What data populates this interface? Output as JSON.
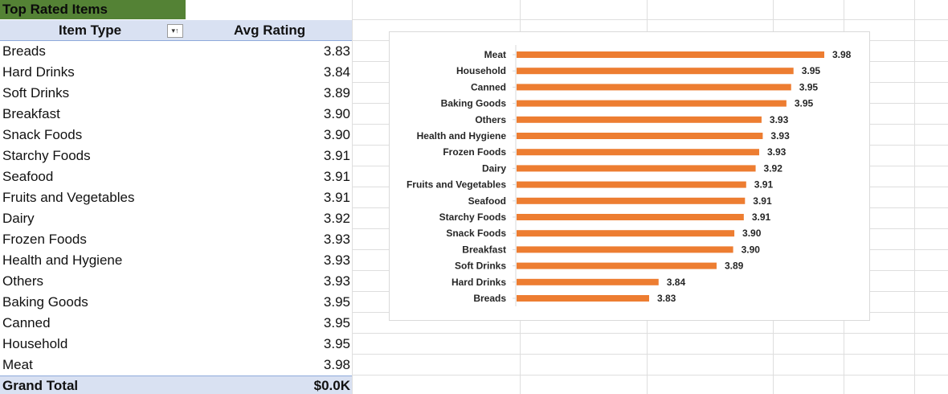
{
  "pivot": {
    "title": "Top Rated Items",
    "headers": {
      "item_type": "Item Type",
      "avg_rating": "Avg Rating"
    },
    "filter_icon": "sort-filter-icon",
    "rows": [
      {
        "type": "Breads",
        "rating": "3.83"
      },
      {
        "type": "Hard Drinks",
        "rating": "3.84"
      },
      {
        "type": "Soft Drinks",
        "rating": "3.89"
      },
      {
        "type": "Breakfast",
        "rating": "3.90"
      },
      {
        "type": "Snack Foods",
        "rating": "3.90"
      },
      {
        "type": "Starchy Foods",
        "rating": "3.91"
      },
      {
        "type": "Seafood",
        "rating": "3.91"
      },
      {
        "type": "Fruits and Vegetables",
        "rating": "3.91"
      },
      {
        "type": "Dairy",
        "rating": "3.92"
      },
      {
        "type": "Frozen Foods",
        "rating": "3.93"
      },
      {
        "type": "Health and Hygiene",
        "rating": "3.93"
      },
      {
        "type": "Others",
        "rating": "3.93"
      },
      {
        "type": "Baking Goods",
        "rating": "3.95"
      },
      {
        "type": "Canned",
        "rating": "3.95"
      },
      {
        "type": "Household",
        "rating": "3.95"
      },
      {
        "type": "Meat",
        "rating": "3.98"
      }
    ],
    "grand_total": {
      "label": "Grand Total",
      "value": "$0.0K"
    }
  },
  "chart_data": {
    "type": "bar",
    "orientation": "horizontal",
    "bar_color": "#ed7d31",
    "categories": [
      "Meat",
      "Household",
      "Canned",
      "Baking Goods",
      "Others",
      "Health and Hygiene",
      "Frozen Foods",
      "Dairy",
      "Fruits and Vegetables",
      "Seafood",
      "Starchy Foods",
      "Snack Foods",
      "Breakfast",
      "Soft Drinks",
      "Hard Drinks",
      "Breads"
    ],
    "values": [
      3.98,
      3.954,
      3.952,
      3.948,
      3.927,
      3.928,
      3.925,
      3.922,
      3.914,
      3.913,
      3.912,
      3.904,
      3.903,
      3.889,
      3.84,
      3.832
    ],
    "labels": [
      "3.98",
      "3.95",
      "3.95",
      "3.95",
      "3.93",
      "3.93",
      "3.93",
      "3.92",
      "3.91",
      "3.91",
      "3.91",
      "3.90",
      "3.90",
      "3.89",
      "3.84",
      "3.83"
    ],
    "xlim": [
      3.72,
      3.98
    ],
    "grid": false,
    "legend": "none"
  }
}
